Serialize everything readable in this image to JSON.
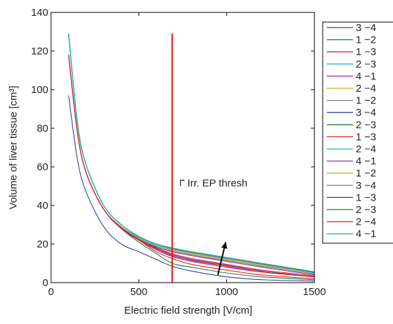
{
  "chart_data": {
    "type": "line",
    "xlabel": "Electric field strength [V/cm]",
    "ylabel": "Volume of liver tissue [cm³]",
    "xlim": [
      0,
      1500
    ],
    "ylim": [
      0,
      140
    ],
    "xticks": [
      0,
      500,
      1000,
      1500
    ],
    "yticks": [
      0,
      20,
      40,
      60,
      80,
      100,
      120,
      140
    ],
    "grid": false,
    "legend_position": "right-outside",
    "threshold": {
      "x": 690,
      "color": "#e8201b",
      "label": "Irr. EP thresh",
      "y_top": 129
    },
    "arrow": {
      "from": [
        950,
        4
      ],
      "to": [
        995,
        21
      ]
    },
    "series": [
      {
        "name": "3 −4",
        "color": "#2b3f9e",
        "x": [
          100,
          150,
          200,
          300,
          400,
          500,
          600,
          690,
          800,
          1000,
          1200,
          1500
        ],
        "y": [
          97,
          64,
          47,
          29,
          20,
          16,
          12,
          8.5,
          6,
          3,
          1.5,
          0.8
        ]
      },
      {
        "name": "1 −2",
        "color": "#1a7a3a",
        "x": [
          100,
          150,
          200,
          300,
          400,
          500,
          600,
          690,
          800,
          1000,
          1200,
          1500
        ],
        "y": [
          118,
          78,
          57,
          38,
          28,
          21,
          15,
          10,
          8,
          5,
          3,
          1.5
        ]
      },
      {
        "name": "1 −3",
        "color": "#e8201b",
        "x": [
          100,
          150,
          200,
          300,
          400,
          500,
          600,
          690,
          800,
          1000,
          1200,
          1500
        ],
        "y": [
          118,
          78,
          57,
          38,
          28,
          22,
          16,
          12.5,
          9.5,
          6.5,
          4,
          2
        ]
      },
      {
        "name": "2 −3",
        "color": "#1ab6c6",
        "x": [
          100,
          150,
          200,
          300,
          400,
          500,
          600,
          690,
          800,
          1000,
          1200,
          1500
        ],
        "y": [
          129,
          83,
          61,
          40,
          30,
          23.5,
          19.5,
          17.5,
          15.5,
          12.5,
          9.5,
          5
        ]
      },
      {
        "name": "4 −1",
        "color": "#9e2ba8",
        "x": [
          100,
          150,
          200,
          300,
          400,
          500,
          600,
          690,
          800,
          1000,
          1200,
          1500
        ],
        "y": [
          118,
          78,
          57,
          38,
          28,
          22,
          17,
          13.5,
          11,
          8,
          5.5,
          3
        ]
      },
      {
        "name": "2 −4",
        "color": "#bdbd10",
        "x": [
          100,
          150,
          200,
          300,
          400,
          500,
          600,
          690,
          800,
          1000,
          1200,
          1500
        ],
        "y": [
          118,
          78,
          57,
          38,
          29,
          23,
          19,
          17,
          15,
          12,
          9,
          5
        ]
      },
      {
        "name": "1 −2",
        "color": "#808080",
        "x": [
          100,
          150,
          200,
          300,
          400,
          500,
          600,
          690,
          800,
          1000,
          1200,
          1500
        ],
        "y": [
          118,
          78,
          57,
          38,
          29,
          23,
          19,
          16.5,
          14.5,
          11.5,
          8.5,
          4.5
        ]
      },
      {
        "name": "3 −4",
        "color": "#2b3f9e",
        "x": [
          100,
          150,
          200,
          300,
          400,
          500,
          600,
          690,
          800,
          1000,
          1200,
          1500
        ],
        "y": [
          129,
          83,
          61,
          40,
          30,
          24,
          20,
          17.5,
          15.5,
          12.5,
          9.5,
          5
        ]
      },
      {
        "name": "2 −3",
        "color": "#1a7a3a",
        "x": [
          100,
          150,
          200,
          300,
          400,
          500,
          600,
          690,
          800,
          1000,
          1200,
          1500
        ],
        "y": [
          129,
          83,
          61,
          40,
          30,
          24,
          20,
          18,
          16,
          13,
          10,
          5.5
        ]
      },
      {
        "name": "1 −3",
        "color": "#e8201b",
        "x": [
          100,
          150,
          200,
          300,
          400,
          500,
          600,
          690,
          800,
          1000,
          1200,
          1500
        ],
        "y": [
          118,
          78,
          57,
          38,
          28.5,
          22.5,
          18,
          15,
          12.5,
          9.5,
          6.5,
          3.5
        ]
      },
      {
        "name": "2 −4",
        "color": "#1ab6c6",
        "x": [
          100,
          150,
          200,
          300,
          400,
          500,
          600,
          690,
          800,
          1000,
          1200,
          1500
        ],
        "y": [
          129,
          83,
          61,
          40,
          30,
          24,
          20,
          18,
          16,
          13,
          10,
          5
        ]
      },
      {
        "name": "4 −1",
        "color": "#9e2ba8",
        "x": [
          100,
          150,
          200,
          300,
          400,
          500,
          600,
          690,
          800,
          1000,
          1200,
          1500
        ],
        "y": [
          118,
          78,
          57,
          38,
          29,
          23,
          18.5,
          16,
          14,
          11,
          8,
          4
        ]
      },
      {
        "name": "1 −2",
        "color": "#bdbd10",
        "x": [
          100,
          150,
          200,
          300,
          400,
          500,
          600,
          690,
          800,
          1000,
          1200,
          1500
        ],
        "y": [
          118,
          78,
          57,
          38,
          29,
          23,
          19,
          17,
          15,
          12,
          9,
          5
        ]
      },
      {
        "name": "3 −4",
        "color": "#808080",
        "x": [
          100,
          150,
          200,
          300,
          400,
          500,
          600,
          690,
          800,
          1000,
          1200,
          1500
        ],
        "y": [
          129,
          83,
          61,
          40,
          30,
          24,
          20,
          17.5,
          15.5,
          12.5,
          9.5,
          5
        ]
      },
      {
        "name": "1 −3",
        "color": "#2b3f9e",
        "x": [
          100,
          150,
          200,
          300,
          400,
          500,
          600,
          690,
          800,
          1000,
          1200,
          1500
        ],
        "y": [
          118,
          78,
          57,
          38,
          28.5,
          22.5,
          18,
          14.5,
          12,
          9,
          6,
          3
        ]
      },
      {
        "name": "2 −3",
        "color": "#1a7a3a",
        "x": [
          100,
          150,
          200,
          300,
          400,
          500,
          600,
          690,
          800,
          1000,
          1200,
          1500
        ],
        "y": [
          129,
          83,
          61,
          40,
          30,
          24,
          20,
          18,
          16,
          13,
          10,
          5.5
        ]
      },
      {
        "name": "2 −4",
        "color": "#e8201b",
        "x": [
          100,
          150,
          200,
          300,
          400,
          500,
          600,
          690,
          800,
          1000,
          1200,
          1500
        ],
        "y": [
          118,
          78,
          57,
          38,
          28.5,
          22.5,
          17.5,
          14,
          11.5,
          8.5,
          5.5,
          3
        ]
      },
      {
        "name": "4 −1",
        "color": "#1ab6c6",
        "x": [
          100,
          150,
          200,
          300,
          400,
          500,
          600,
          690,
          800,
          1000,
          1200,
          1500
        ],
        "y": [
          129,
          83,
          61,
          40,
          30,
          24,
          20,
          18,
          16,
          13,
          10,
          5
        ]
      }
    ]
  }
}
